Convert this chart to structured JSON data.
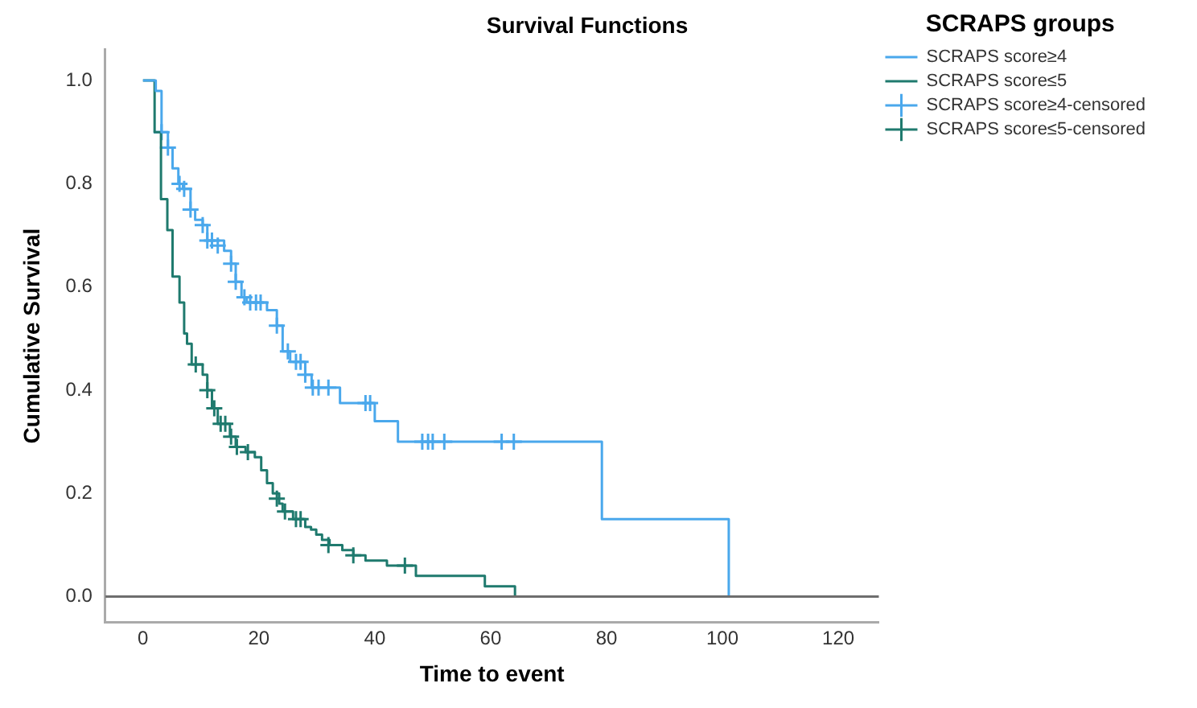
{
  "chart_data": {
    "type": "step",
    "title": "Survival Functions",
    "xlabel": "Time to event",
    "ylabel": "Cumulative Survival",
    "legend_title": "SCRAPS groups",
    "legend": "top right",
    "grid": false,
    "xlim": [
      -6.5,
      127
    ],
    "xticks": [
      0,
      20,
      40,
      60,
      80,
      100,
      120
    ],
    "ylim": [
      -0.05,
      1.06
    ],
    "yticks": [
      {
        "value": 0,
        "label": "0.0"
      },
      {
        "value": 0.2,
        "label": "0.2"
      },
      {
        "value": 0.4,
        "label": "0.4"
      },
      {
        "value": 0.6,
        "label": "0.6"
      },
      {
        "value": 0.8,
        "label": "0.8"
      },
      {
        "value": 1,
        "label": "1.0"
      }
    ],
    "ref_lines": [
      {
        "axis": "y",
        "value": 0,
        "label": null,
        "color": "#6e6e6e"
      }
    ],
    "series": [
      {
        "name": "SCRAPS score≥4",
        "color": "#4aa8ec",
        "marker": "none",
        "x": [
          0,
          2.2,
          3.2,
          4.3,
          5.1,
          6.1,
          6.9,
          8.2,
          9.0,
          10.3,
          11.1,
          14,
          15.2,
          16,
          17,
          17.9,
          21.4,
          23.1,
          24.1,
          25.4,
          28,
          29.1,
          34,
          40,
          44,
          79.2,
          101.1
        ],
        "values": [
          1.0,
          0.98,
          0.9,
          0.87,
          0.83,
          0.8,
          0.79,
          0.75,
          0.73,
          0.72,
          0.69,
          0.67,
          0.645,
          0.61,
          0.58,
          0.57,
          0.555,
          0.525,
          0.475,
          0.455,
          0.43,
          0.405,
          0.375,
          0.34,
          0.3,
          0.15,
          0.0
        ]
      },
      {
        "name": "SCRAPS score≤5",
        "color": "#1f7a6e",
        "marker": "none",
        "x": [
          0,
          2.0,
          3.1,
          4.2,
          5.1,
          6.3,
          7.1,
          7.6,
          8.4,
          10.3,
          11.1,
          11.9,
          12.9,
          15.0,
          16,
          17.7,
          19.3,
          20.4,
          21.4,
          22.4,
          23.5,
          24.1,
          25.9,
          28,
          29,
          29.9,
          30.9,
          32.2,
          34.4,
          36.3,
          38.4,
          42.1,
          47.1,
          59,
          64.2
        ],
        "values": [
          1.0,
          0.9,
          0.77,
          0.71,
          0.62,
          0.57,
          0.51,
          0.49,
          0.45,
          0.43,
          0.4,
          0.365,
          0.335,
          0.31,
          0.29,
          0.28,
          0.27,
          0.245,
          0.22,
          0.2,
          0.18,
          0.165,
          0.15,
          0.135,
          0.13,
          0.12,
          0.11,
          0.1,
          0.09,
          0.08,
          0.07,
          0.06,
          0.04,
          0.02,
          0.0
        ]
      },
      {
        "name": "SCRAPS score≥4-censored",
        "type": "scatter",
        "color": "#4aa8ec",
        "marker": "cross",
        "x": [
          3.2,
          4.3,
          6.3,
          7.1,
          8.2,
          10.3,
          11.1,
          11.9,
          12.9,
          15.2,
          16,
          17.5,
          18.5,
          19.5,
          20.3,
          23.1,
          25,
          26.4,
          27.2,
          28,
          29.3,
          30.3,
          32,
          38.4,
          39.2,
          48.2,
          49.2,
          50,
          52,
          61.9,
          64
        ],
        "values": [
          0.9,
          0.87,
          0.8,
          0.79,
          0.75,
          0.72,
          0.69,
          0.69,
          0.68,
          0.645,
          0.61,
          0.58,
          0.57,
          0.57,
          0.57,
          0.525,
          0.475,
          0.455,
          0.455,
          0.43,
          0.405,
          0.405,
          0.405,
          0.375,
          0.375,
          0.3,
          0.3,
          0.3,
          0.3,
          0.3,
          0.3
        ]
      },
      {
        "name": "SCRAPS score≤5-censored",
        "type": "scatter",
        "color": "#1f7a6e",
        "marker": "cross",
        "x": [
          9.1,
          11.1,
          12.3,
          13.4,
          14.2,
          15.2,
          16.2,
          18.1,
          23.1,
          24.5,
          26.4,
          27.2,
          32,
          36.3,
          45.2
        ],
        "values": [
          0.45,
          0.4,
          0.365,
          0.335,
          0.335,
          0.31,
          0.29,
          0.28,
          0.19,
          0.165,
          0.15,
          0.15,
          0.1,
          0.08,
          0.06
        ]
      }
    ]
  }
}
